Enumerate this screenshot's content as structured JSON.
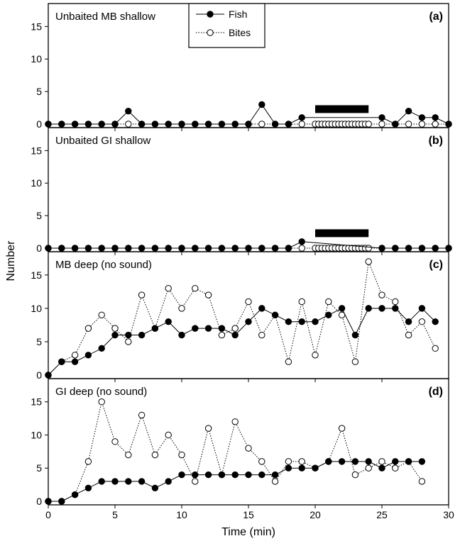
{
  "figure": {
    "ylabel": "Number",
    "xlabel": "Time (min)"
  },
  "legend": {
    "entries": [
      {
        "label": "Fish",
        "marker": "filled-circle",
        "line": "solid"
      },
      {
        "label": "Bites",
        "marker": "open-circle",
        "line": "dotted"
      }
    ],
    "placement": "top-center of panel (a)"
  },
  "colors": {
    "axis": "#000000",
    "fish_marker": "#000000",
    "bites_marker_fill": "#ffffff",
    "sound_bar": "#000000"
  },
  "chart_data": [
    {
      "type": "line",
      "panel_label": "(a)",
      "title": "Unbaited  MB shallow",
      "xlabel": "Time (min)",
      "ylabel": "Number",
      "xlim": [
        0,
        30
      ],
      "ylim": [
        0,
        18
      ],
      "yticks": [
        0,
        5,
        10,
        15
      ],
      "xticks": [
        0,
        5,
        10,
        15,
        20,
        25,
        30
      ],
      "show_xtick_labels": false,
      "sound_bar": [
        20,
        24
      ],
      "grid": false,
      "series": [
        {
          "name": "Fish",
          "x": [
            0,
            1,
            2,
            3,
            4,
            5,
            6,
            7,
            8,
            9,
            10,
            11,
            12,
            13,
            14,
            15,
            16,
            17,
            18,
            19,
            25,
            26,
            27,
            28,
            29,
            30
          ],
          "y": [
            0,
            0,
            0,
            0,
            0,
            0,
            2,
            0,
            0,
            0,
            0,
            0,
            0,
            0,
            0,
            0,
            3,
            0,
            0,
            1,
            1,
            0,
            2,
            1,
            1,
            0
          ]
        },
        {
          "name": "Bites",
          "x": [
            0,
            1,
            2,
            3,
            4,
            5,
            6,
            7,
            8,
            9,
            10,
            11,
            12,
            13,
            14,
            15,
            16,
            17,
            18,
            19,
            20,
            20.25,
            20.5,
            20.75,
            21,
            21.25,
            21.5,
            21.75,
            22,
            22.25,
            22.5,
            22.75,
            23,
            23.25,
            23.5,
            23.75,
            24,
            25,
            26,
            27,
            28,
            29,
            30
          ],
          "y": [
            0,
            0,
            0,
            0,
            0,
            0,
            0,
            0,
            0,
            0,
            0,
            0,
            0,
            0,
            0,
            0,
            0,
            0,
            0,
            0,
            0,
            0,
            0,
            0,
            0,
            0,
            0,
            0,
            0,
            0,
            0,
            0,
            0,
            0,
            0,
            0,
            0,
            0,
            0,
            0,
            0,
            0,
            0
          ]
        }
      ]
    },
    {
      "type": "line",
      "panel_label": "(b)",
      "title": "Unbaited  GI shallow",
      "xlabel": "Time (min)",
      "ylabel": "Number",
      "xlim": [
        0,
        30
      ],
      "ylim": [
        0,
        18
      ],
      "yticks": [
        0,
        5,
        10,
        15
      ],
      "xticks": [
        0,
        5,
        10,
        15,
        20,
        25,
        30
      ],
      "show_xtick_labels": false,
      "sound_bar": [
        20,
        24
      ],
      "grid": false,
      "series": [
        {
          "name": "Fish",
          "x": [
            0,
            1,
            2,
            3,
            4,
            5,
            6,
            7,
            8,
            9,
            10,
            11,
            12,
            13,
            14,
            15,
            16,
            17,
            18,
            19,
            25,
            26,
            27,
            28,
            29,
            30
          ],
          "y": [
            0,
            0,
            0,
            0,
            0,
            0,
            0,
            0,
            0,
            0,
            0,
            0,
            0,
            0,
            0,
            0,
            0,
            0,
            0,
            1,
            0,
            0,
            0,
            0,
            0,
            0
          ]
        },
        {
          "name": "Bites",
          "x": [
            0,
            1,
            2,
            3,
            4,
            5,
            6,
            7,
            8,
            9,
            10,
            11,
            12,
            13,
            14,
            15,
            16,
            17,
            18,
            19,
            20,
            20.25,
            20.5,
            20.75,
            21,
            21.25,
            21.5,
            21.75,
            22,
            22.25,
            22.5,
            22.75,
            23,
            23.25,
            23.5,
            23.75,
            24,
            25,
            26,
            27,
            28,
            29,
            30
          ],
          "y": [
            0,
            0,
            0,
            0,
            0,
            0,
            0,
            0,
            0,
            0,
            0,
            0,
            0,
            0,
            0,
            0,
            0,
            0,
            0,
            0,
            0,
            0,
            0,
            0,
            0,
            0,
            0,
            0,
            0,
            0,
            0,
            0,
            0,
            0,
            0,
            0,
            0,
            0,
            0,
            0,
            0,
            0,
            0
          ]
        }
      ]
    },
    {
      "type": "line",
      "panel_label": "(c)",
      "title": "MB deep (no sound)",
      "xlabel": "Time (min)",
      "ylabel": "Number",
      "xlim": [
        0,
        30
      ],
      "ylim": [
        0,
        18
      ],
      "yticks": [
        0,
        5,
        10,
        15
      ],
      "xticks": [
        0,
        5,
        10,
        15,
        20,
        25,
        30
      ],
      "show_xtick_labels": false,
      "grid": false,
      "series": [
        {
          "name": "Fish",
          "x": [
            0,
            1,
            2,
            3,
            4,
            5,
            6,
            7,
            8,
            9,
            10,
            11,
            12,
            13,
            14,
            15,
            16,
            17,
            18,
            19,
            20,
            21,
            22,
            23,
            24,
            25,
            26,
            27,
            28,
            29
          ],
          "y": [
            0,
            2,
            2,
            3,
            4,
            6,
            6,
            6,
            7,
            8,
            6,
            7,
            7,
            7,
            6,
            8,
            10,
            9,
            8,
            8,
            8,
            9,
            10,
            6,
            10,
            10,
            10,
            8,
            10,
            8
          ]
        },
        {
          "name": "Bites",
          "x": [
            0,
            1,
            2,
            3,
            4,
            5,
            6,
            7,
            8,
            9,
            10,
            11,
            12,
            13,
            14,
            15,
            16,
            17,
            18,
            19,
            20,
            21,
            22,
            23,
            24,
            25,
            26,
            27,
            28,
            29
          ],
          "y": [
            0,
            2,
            3,
            7,
            9,
            7,
            5,
            12,
            7,
            13,
            10,
            13,
            12,
            6,
            7,
            11,
            6,
            9,
            2,
            11,
            3,
            11,
            9,
            2,
            17,
            12,
            11,
            6,
            8,
            4
          ]
        }
      ]
    },
    {
      "type": "line",
      "panel_label": "(d)",
      "title": "GI deep (no sound)",
      "xlabel": "Time (min)",
      "ylabel": "Number",
      "xlim": [
        0,
        30
      ],
      "ylim": [
        0,
        18
      ],
      "yticks": [
        0,
        5,
        10,
        15
      ],
      "xticks": [
        0,
        5,
        10,
        15,
        20,
        25,
        30
      ],
      "xtick_labels": [
        "0",
        "5",
        "10",
        "15",
        "20",
        "25",
        "30"
      ],
      "show_xtick_labels": true,
      "grid": false,
      "series": [
        {
          "name": "Fish",
          "x": [
            0,
            1,
            2,
            3,
            4,
            5,
            6,
            7,
            8,
            9,
            10,
            11,
            12,
            13,
            14,
            15,
            16,
            17,
            18,
            19,
            20,
            21,
            22,
            23,
            24,
            25,
            26,
            27,
            28
          ],
          "y": [
            0,
            0,
            1,
            2,
            3,
            3,
            3,
            3,
            2,
            3,
            4,
            4,
            4,
            4,
            4,
            4,
            4,
            4,
            5,
            5,
            5,
            6,
            6,
            6,
            6,
            5,
            6,
            6,
            6
          ]
        },
        {
          "name": "Bites",
          "x": [
            0,
            1,
            2,
            3,
            4,
            5,
            6,
            7,
            8,
            9,
            10,
            11,
            12,
            13,
            14,
            15,
            16,
            17,
            18,
            19,
            20,
            21,
            22,
            23,
            24,
            25,
            26,
            27,
            28
          ],
          "y": [
            0,
            0,
            1,
            6,
            15,
            9,
            7,
            13,
            7,
            10,
            7,
            3,
            11,
            4,
            12,
            8,
            6,
            3,
            6,
            6,
            5,
            6,
            11,
            4,
            5,
            6,
            5,
            6,
            3
          ]
        }
      ]
    }
  ]
}
